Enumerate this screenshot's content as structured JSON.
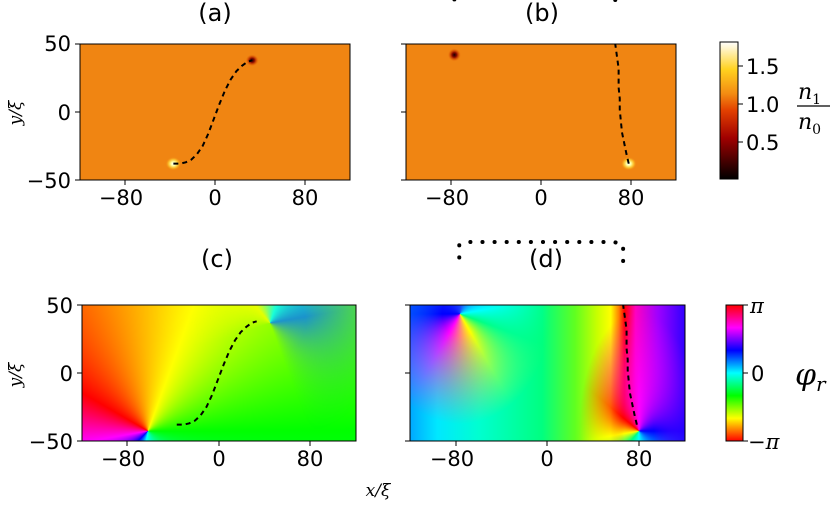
{
  "chart_data": [
    {
      "type": "heatmap",
      "panel_label": "(a)",
      "quantity": "density",
      "xlim": [
        -120,
        120
      ],
      "ylim": [
        -50,
        50
      ],
      "xticks": [
        "−80",
        "0",
        "80"
      ],
      "yticks": [
        "50",
        "0",
        "−50"
      ],
      "ylabel": "y/ξ",
      "background_value": 1.0,
      "defects": [
        {
          "kind": "dark",
          "x": 33,
          "y": 38
        },
        {
          "kind": "bright",
          "x": -37,
          "y": -38
        }
      ],
      "dashed_path": [
        [
          -37,
          -38
        ],
        [
          -31,
          -38
        ],
        [
          -26,
          -37
        ],
        [
          -21,
          -35
        ],
        [
          -16,
          -31
        ],
        [
          -11,
          -25
        ],
        [
          -6,
          -16
        ],
        [
          -1,
          -5
        ],
        [
          4,
          6
        ],
        [
          9,
          16
        ],
        [
          14,
          24
        ],
        [
          19,
          30
        ],
        [
          24,
          34
        ],
        [
          29,
          37
        ],
        [
          33,
          38
        ]
      ]
    },
    {
      "type": "heatmap",
      "panel_label": "(b)",
      "quantity": "density",
      "xlim": [
        -120,
        120
      ],
      "ylim": [
        -50,
        50
      ],
      "xticks": [
        "−80",
        "0",
        "80"
      ],
      "yticks": [],
      "background_value": 1.0,
      "defects": [
        {
          "kind": "dark",
          "x": -77,
          "y": 42
        },
        {
          "kind": "bright",
          "x": 78,
          "y": -38
        }
      ],
      "dashed_path": [
        [
          78,
          -38
        ],
        [
          76,
          -31
        ],
        [
          74,
          -23
        ],
        [
          72,
          -15
        ],
        [
          71,
          -7
        ],
        [
          70,
          2
        ],
        [
          70,
          10
        ],
        [
          69,
          18
        ],
        [
          69,
          25
        ],
        [
          69,
          32
        ],
        [
          68,
          38
        ],
        [
          67,
          44
        ],
        [
          66,
          50
        ]
      ],
      "dotted_bridge": [
        [
          66,
          50
        ],
        [
          66,
          62
        ],
        [
          58,
          64
        ],
        [
          -68,
          64
        ],
        [
          -77,
          62
        ],
        [
          -77,
          50
        ]
      ]
    },
    {
      "type": "heatmap",
      "panel_label": "(c)",
      "quantity": "phase",
      "xlim": [
        -120,
        120
      ],
      "ylim": [
        -50,
        50
      ],
      "xticks": [
        "−80",
        "0",
        "80"
      ],
      "yticks": [
        "50",
        "0",
        "−50"
      ],
      "ylabel": "y/ξ",
      "xlabel": "",
      "vortices": [
        {
          "x": -37,
          "y": -38,
          "charge": 1
        },
        {
          "x": 33,
          "y": 38,
          "charge": -1
        }
      ],
      "dashed_path": [
        [
          -37,
          -38
        ],
        [
          -31,
          -38
        ],
        [
          -26,
          -37
        ],
        [
          -21,
          -35
        ],
        [
          -16,
          -31
        ],
        [
          -11,
          -25
        ],
        [
          -6,
          -16
        ],
        [
          -1,
          -5
        ],
        [
          4,
          6
        ],
        [
          9,
          16
        ],
        [
          14,
          24
        ],
        [
          19,
          30
        ],
        [
          24,
          34
        ],
        [
          29,
          37
        ],
        [
          33,
          38
        ]
      ]
    },
    {
      "type": "heatmap",
      "panel_label": "(d)",
      "quantity": "phase",
      "xlim": [
        -120,
        120
      ],
      "ylim": [
        -50,
        50
      ],
      "xticks": [
        "−80",
        "0",
        "80"
      ],
      "yticks": [],
      "vortices": [
        {
          "x": -77,
          "y": 42,
          "charge": 1
        },
        {
          "x": 78,
          "y": -38,
          "charge": -1
        }
      ],
      "dashed_path": [
        [
          78,
          -38
        ],
        [
          76,
          -31
        ],
        [
          74,
          -23
        ],
        [
          72,
          -15
        ],
        [
          71,
          -7
        ],
        [
          70,
          2
        ],
        [
          70,
          10
        ],
        [
          69,
          18
        ],
        [
          69,
          25
        ],
        [
          69,
          32
        ],
        [
          68,
          38
        ],
        [
          67,
          44
        ],
        [
          66,
          50
        ]
      ],
      "dotted_bridge": [
        [
          66,
          50
        ],
        [
          66,
          62
        ],
        [
          58,
          64
        ],
        [
          -68,
          64
        ],
        [
          -77,
          62
        ],
        [
          -77,
          50
        ]
      ]
    }
  ],
  "colorbars": {
    "density": {
      "ticks": [
        "1.5",
        "1.0",
        "0.5"
      ],
      "tick_values": [
        1.5,
        1.0,
        0.5
      ],
      "range": [
        0.05,
        1.85
      ],
      "label_num": "n",
      "label_num_sub": "1",
      "label_den": "n",
      "label_den_sub": "0"
    },
    "phase": {
      "ticks": [
        "π",
        "0",
        "−π"
      ],
      "label": "φ",
      "label_sub": "r"
    }
  },
  "xlabel": "x/ξ",
  "colors": {
    "density_bg": "#f08512",
    "dash": "#000000"
  }
}
